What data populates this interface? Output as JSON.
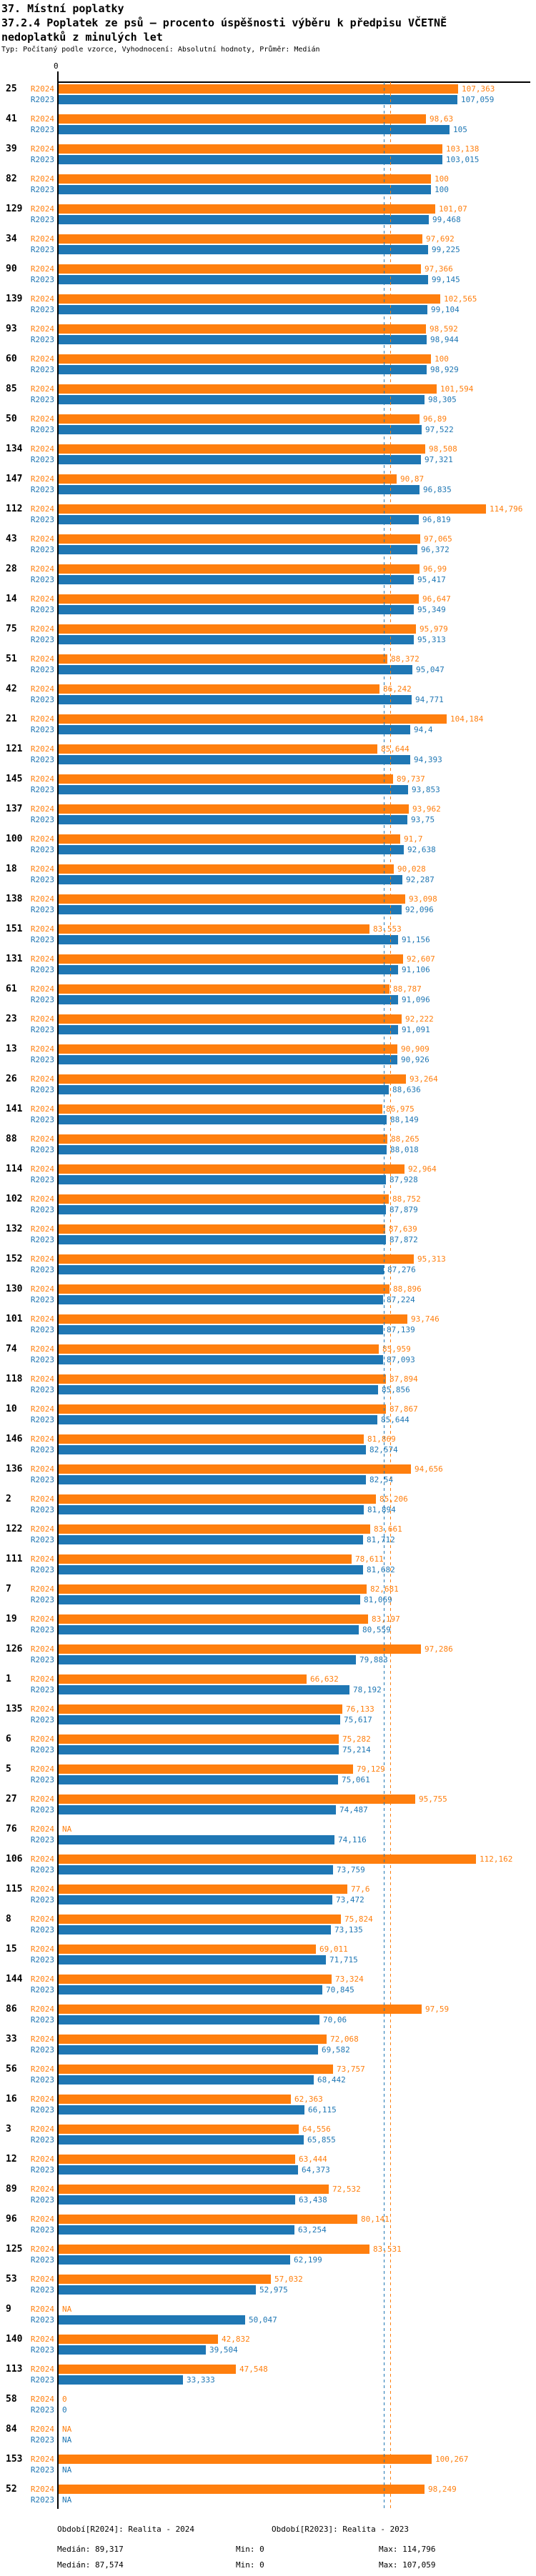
{
  "title": "37. Místní poplatky",
  "subtitle": "37.2.4 Poplatek ze psů – procento úspěšnosti výběru k předpisu VČETNĚ nedoplatků z minulých let",
  "meta_line": "Typ: Počítaný podle vzorce, Vyhodnocení: Absolutní hodnoty, Průměr: Medián",
  "colors": {
    "r2024_orange": "#ff7f0e",
    "r2023_blue": "#1f77b4",
    "axis_black": "#000000"
  },
  "chart_data": {
    "type": "bar",
    "orientation": "horizontal",
    "x_axis": {
      "origin_tick_label": "0",
      "min": 0,
      "max": 114.796,
      "grid": false
    },
    "series": [
      {
        "name": "R2024",
        "median": 89.317
      },
      {
        "name": "R2023",
        "median": 87.574
      }
    ],
    "legend_position": "per-row-left",
    "rows": [
      {
        "id": "25",
        "R2024": "107,363",
        "R2023": "107,059"
      },
      {
        "id": "41",
        "R2024": "98,63",
        "R2023": "105"
      },
      {
        "id": "39",
        "R2024": "103,138",
        "R2023": "103,015"
      },
      {
        "id": "82",
        "R2024": "100",
        "R2023": "100"
      },
      {
        "id": "129",
        "R2024": "101,07",
        "R2023": "99,468"
      },
      {
        "id": "34",
        "R2024": "97,692",
        "R2023": "99,225"
      },
      {
        "id": "90",
        "R2024": "97,366",
        "R2023": "99,145"
      },
      {
        "id": "139",
        "R2024": "102,565",
        "R2023": "99,104"
      },
      {
        "id": "93",
        "R2024": "98,592",
        "R2023": "98,944"
      },
      {
        "id": "60",
        "R2024": "100",
        "R2023": "98,929"
      },
      {
        "id": "85",
        "R2024": "101,594",
        "R2023": "98,305"
      },
      {
        "id": "50",
        "R2024": "96,89",
        "R2023": "97,522"
      },
      {
        "id": "134",
        "R2024": "98,508",
        "R2023": "97,321"
      },
      {
        "id": "147",
        "R2024": "90,87",
        "R2023": "96,835"
      },
      {
        "id": "112",
        "R2024": "114,796",
        "R2023": "96,819"
      },
      {
        "id": "43",
        "R2024": "97,065",
        "R2023": "96,372"
      },
      {
        "id": "28",
        "R2024": "96,99",
        "R2023": "95,417"
      },
      {
        "id": "14",
        "R2024": "96,647",
        "R2023": "95,349"
      },
      {
        "id": "75",
        "R2024": "95,979",
        "R2023": "95,313"
      },
      {
        "id": "51",
        "R2024": "88,372",
        "R2023": "95,047"
      },
      {
        "id": "42",
        "R2024": "86,242",
        "R2023": "94,771"
      },
      {
        "id": "21",
        "R2024": "104,184",
        "R2023": "94,4"
      },
      {
        "id": "121",
        "R2024": "85,644",
        "R2023": "94,393"
      },
      {
        "id": "145",
        "R2024": "89,737",
        "R2023": "93,853"
      },
      {
        "id": "137",
        "R2024": "93,962",
        "R2023": "93,75"
      },
      {
        "id": "100",
        "R2024": "91,7",
        "R2023": "92,638"
      },
      {
        "id": "18",
        "R2024": "90,028",
        "R2023": "92,287"
      },
      {
        "id": "138",
        "R2024": "93,098",
        "R2023": "92,096"
      },
      {
        "id": "151",
        "R2024": "83,553",
        "R2023": "91,156"
      },
      {
        "id": "131",
        "R2024": "92,607",
        "R2023": "91,106"
      },
      {
        "id": "61",
        "R2024": "88,787",
        "R2023": "91,096"
      },
      {
        "id": "23",
        "R2024": "92,222",
        "R2023": "91,091"
      },
      {
        "id": "13",
        "R2024": "90,909",
        "R2023": "90,926"
      },
      {
        "id": "26",
        "R2024": "93,264",
        "R2023": "88,636"
      },
      {
        "id": "141",
        "R2024": "86,975",
        "R2023": "88,149"
      },
      {
        "id": "88",
        "R2024": "88,265",
        "R2023": "88,018"
      },
      {
        "id": "114",
        "R2024": "92,964",
        "R2023": "87,928"
      },
      {
        "id": "102",
        "R2024": "88,752",
        "R2023": "87,879"
      },
      {
        "id": "132",
        "R2024": "87,639",
        "R2023": "87,872"
      },
      {
        "id": "152",
        "R2024": "95,313",
        "R2023": "87,276"
      },
      {
        "id": "130",
        "R2024": "88,896",
        "R2023": "87,224"
      },
      {
        "id": "101",
        "R2024": "93,746",
        "R2023": "87,139"
      },
      {
        "id": "74",
        "R2024": "85,959",
        "R2023": "87,093"
      },
      {
        "id": "118",
        "R2024": "87,894",
        "R2023": "85,856"
      },
      {
        "id": "10",
        "R2024": "87,867",
        "R2023": "85,644"
      },
      {
        "id": "146",
        "R2024": "81,869",
        "R2023": "82,574"
      },
      {
        "id": "136",
        "R2024": "94,656",
        "R2023": "82,54"
      },
      {
        "id": "2",
        "R2024": "85,206",
        "R2023": "81,894"
      },
      {
        "id": "122",
        "R2024": "83,661",
        "R2023": "81,712"
      },
      {
        "id": "111",
        "R2024": "78,611",
        "R2023": "81,682"
      },
      {
        "id": "7",
        "R2024": "82,681",
        "R2023": "81,069"
      },
      {
        "id": "19",
        "R2024": "83,197",
        "R2023": "80,559"
      },
      {
        "id": "126",
        "R2024": "97,286",
        "R2023": "79,883"
      },
      {
        "id": "1",
        "R2024": "66,632",
        "R2023": "78,192"
      },
      {
        "id": "135",
        "R2024": "76,133",
        "R2023": "75,617"
      },
      {
        "id": "6",
        "R2024": "75,282",
        "R2023": "75,214"
      },
      {
        "id": "5",
        "R2024": "79,129",
        "R2023": "75,061"
      },
      {
        "id": "27",
        "R2024": "95,755",
        "R2023": "74,487"
      },
      {
        "id": "76",
        "R2024": "NA",
        "R2023": "74,116"
      },
      {
        "id": "106",
        "R2024": "112,162",
        "R2023": "73,759"
      },
      {
        "id": "115",
        "R2024": "77,6",
        "R2023": "73,472"
      },
      {
        "id": "8",
        "R2024": "75,824",
        "R2023": "73,135"
      },
      {
        "id": "15",
        "R2024": "69,011",
        "R2023": "71,715"
      },
      {
        "id": "144",
        "R2024": "73,324",
        "R2023": "70,845"
      },
      {
        "id": "86",
        "R2024": "97,59",
        "R2023": "70,06"
      },
      {
        "id": "33",
        "R2024": "72,068",
        "R2023": "69,582"
      },
      {
        "id": "56",
        "R2024": "73,757",
        "R2023": "68,442"
      },
      {
        "id": "16",
        "R2024": "62,363",
        "R2023": "66,115"
      },
      {
        "id": "3",
        "R2024": "64,556",
        "R2023": "65,855"
      },
      {
        "id": "12",
        "R2024": "63,444",
        "R2023": "64,373"
      },
      {
        "id": "89",
        "R2024": "72,532",
        "R2023": "63,438"
      },
      {
        "id": "96",
        "R2024": "80,141",
        "R2023": "63,254"
      },
      {
        "id": "125",
        "R2024": "83,531",
        "R2023": "62,199"
      },
      {
        "id": "53",
        "R2024": "57,032",
        "R2023": "52,975"
      },
      {
        "id": "9",
        "R2024": "NA",
        "R2023": "50,047"
      },
      {
        "id": "140",
        "R2024": "42,832",
        "R2023": "39,504"
      },
      {
        "id": "113",
        "R2024": "47,548",
        "R2023": "33,333"
      },
      {
        "id": "58",
        "R2024": "0",
        "R2023": "0"
      },
      {
        "id": "84",
        "R2024": "NA",
        "R2023": "NA"
      },
      {
        "id": "153",
        "R2024": "100,267",
        "R2023": "NA"
      },
      {
        "id": "52",
        "R2024": "98,249",
        "R2023": "NA"
      }
    ]
  },
  "footer": {
    "period_r2024": "Období[R2024]: Realita - 2024",
    "period_r2023": "Období[R2023]: Realita - 2023",
    "stats_r2024": {
      "median": "Medián: 89,317",
      "min": "Min: 0",
      "max": "Max: 114,796"
    },
    "stats_r2023": {
      "median": "Medián: 87,574",
      "min": "Min: 0",
      "max": "Max: 107,059"
    }
  }
}
